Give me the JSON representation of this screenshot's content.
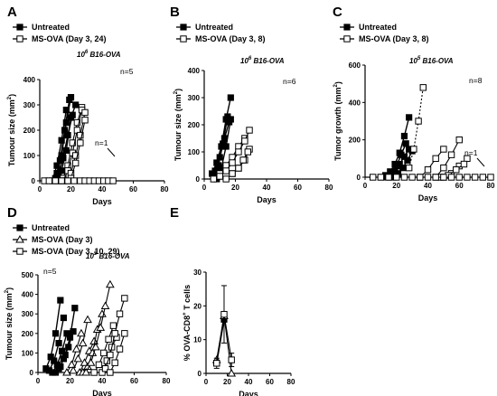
{
  "chart_data": [
    {
      "id": "A",
      "letter": "A",
      "type": "line",
      "legend": [
        {
          "label": "Untreated",
          "marker": "filled-square"
        },
        {
          "label": "MS-OVA (Day 3, 24)",
          "marker": "open-square"
        }
      ],
      "annotations": [
        "10",
        "6",
        " B16-OVA",
        "n=5",
        "n=1"
      ],
      "xlabel": "Days",
      "ylabel": "Tumour size (mm",
      "ylabel_sup": "2",
      "ylabel_end": ")",
      "xlim": [
        0,
        80
      ],
      "ylim": [
        0,
        400
      ],
      "xticks": [
        0,
        20,
        40,
        60,
        80
      ],
      "yticks": [
        0,
        100,
        200,
        300,
        400
      ],
      "series": [
        {
          "marker": "filled",
          "x": [
            8,
            11,
            14,
            17,
            20
          ],
          "y": [
            0,
            30,
            100,
            230,
            330
          ]
        },
        {
          "marker": "filled",
          "x": [
            8,
            11,
            14,
            17
          ],
          "y": [
            0,
            60,
            160,
            280
          ]
        },
        {
          "marker": "filled",
          "x": [
            10,
            13,
            16,
            19
          ],
          "y": [
            10,
            80,
            200,
            320
          ]
        },
        {
          "marker": "filled",
          "x": [
            11,
            14,
            17,
            20,
            23
          ],
          "y": [
            0,
            40,
            120,
            250,
            300
          ]
        },
        {
          "marker": "filled",
          "x": [
            12,
            15,
            18,
            21
          ],
          "y": [
            20,
            90,
            180,
            260
          ]
        },
        {
          "marker": "open",
          "x": [
            12,
            15,
            18,
            21,
            24,
            27
          ],
          "y": [
            0,
            10,
            60,
            150,
            230,
            290
          ]
        },
        {
          "marker": "open",
          "x": [
            15,
            18,
            21,
            24,
            27
          ],
          "y": [
            0,
            40,
            110,
            200,
            280
          ]
        },
        {
          "marker": "open",
          "x": [
            17,
            20,
            23,
            26,
            29
          ],
          "y": [
            0,
            30,
            100,
            180,
            270
          ]
        },
        {
          "marker": "open",
          "x": [
            20,
            23,
            26,
            29
          ],
          "y": [
            10,
            70,
            150,
            240
          ]
        },
        {
          "marker": "open",
          "x": [
            3,
            6,
            10,
            14,
            18,
            22,
            26,
            29,
            32,
            35,
            38,
            41,
            44,
            47
          ],
          "y": [
            0,
            0,
            0,
            0,
            0,
            0,
            0,
            0,
            0,
            0,
            0,
            0,
            0,
            0
          ]
        }
      ]
    },
    {
      "id": "B",
      "letter": "B",
      "type": "line",
      "legend": [
        {
          "label": "Untreated",
          "marker": "filled-square"
        },
        {
          "label": "MS-OVA (Day 3, 8)",
          "marker": "open-square"
        }
      ],
      "annotations": [
        "10",
        "6",
        " B16-OVA",
        "n=6"
      ],
      "xlabel": "Days",
      "ylabel": "Tumour size (mm",
      "ylabel_sup": "2",
      "ylabel_end": ")",
      "xlim": [
        0,
        80
      ],
      "ylim": [
        0,
        400
      ],
      "xticks": [
        0,
        20,
        40,
        60,
        80
      ],
      "yticks": [
        0,
        100,
        200,
        300,
        400
      ],
      "series": [
        {
          "marker": "filled",
          "x": [
            5,
            8,
            11,
            14,
            17
          ],
          "y": [
            20,
            60,
            120,
            220,
            300
          ]
        },
        {
          "marker": "filled",
          "x": [
            6,
            9,
            12,
            15
          ],
          "y": [
            10,
            50,
            130,
            230
          ]
        },
        {
          "marker": "filled",
          "x": [
            7,
            10,
            13,
            16
          ],
          "y": [
            30,
            80,
            150,
            210
          ]
        },
        {
          "marker": "filled",
          "x": [
            8,
            11,
            14,
            17
          ],
          "y": [
            0,
            40,
            120,
            220
          ]
        },
        {
          "marker": "open",
          "x": [
            6,
            10,
            14,
            18,
            22,
            26
          ],
          "y": [
            0,
            20,
            50,
            80,
            120,
            150
          ]
        },
        {
          "marker": "open",
          "x": [
            10,
            14,
            18,
            22,
            26,
            29
          ],
          "y": [
            10,
            30,
            60,
            100,
            140,
            180
          ]
        },
        {
          "marker": "open",
          "x": [
            14,
            18,
            22,
            26,
            29
          ],
          "y": [
            0,
            20,
            40,
            70,
            110
          ]
        },
        {
          "marker": "open",
          "x": [
            18,
            22,
            25,
            28
          ],
          "y": [
            20,
            40,
            70,
            100
          ]
        }
      ]
    },
    {
      "id": "C",
      "letter": "C",
      "type": "line",
      "legend": [
        {
          "label": "Untreated",
          "marker": "filled-square"
        },
        {
          "label": "MS-OVA (Day 3, 8)",
          "marker": "open-square"
        }
      ],
      "annotations": [
        "10",
        "5",
        " B16-OVA",
        "n=8",
        "n=1"
      ],
      "xlabel": "Days",
      "ylabel": "Tumor growth (mm",
      "ylabel_sup": "2",
      "ylabel_end": ")",
      "xlim": [
        0,
        80
      ],
      "ylim": [
        0,
        600
      ],
      "xticks": [
        0,
        20,
        40,
        60,
        80
      ],
      "yticks": [
        0,
        200,
        400,
        600
      ],
      "series": [
        {
          "marker": "filled",
          "x": [
            10,
            13,
            16,
            19,
            22,
            25,
            28
          ],
          "y": [
            0,
            10,
            30,
            70,
            130,
            220,
            320
          ]
        },
        {
          "marker": "filled",
          "x": [
            14,
            17,
            20,
            23,
            26
          ],
          "y": [
            0,
            20,
            60,
            120,
            180
          ]
        },
        {
          "marker": "filled",
          "x": [
            16,
            19,
            22,
            25,
            28
          ],
          "y": [
            0,
            30,
            70,
            110,
            150
          ]
        },
        {
          "marker": "filled",
          "x": [
            18,
            21,
            24,
            27,
            30
          ],
          "y": [
            0,
            20,
            50,
            90,
            140
          ]
        },
        {
          "marker": "open",
          "x": [
            28,
            31,
            34,
            37
          ],
          "y": [
            50,
            150,
            300,
            480
          ],
          "dashed": true
        },
        {
          "marker": "open",
          "x": [
            35,
            40,
            45,
            50
          ],
          "y": [
            0,
            40,
            100,
            150
          ]
        },
        {
          "marker": "open",
          "x": [
            45,
            50,
            55,
            60
          ],
          "y": [
            0,
            50,
            120,
            200
          ]
        },
        {
          "marker": "open",
          "x": [
            50,
            55,
            60,
            65
          ],
          "y": [
            0,
            20,
            60,
            100
          ]
        },
        {
          "marker": "open",
          "x": [
            48,
            53,
            58,
            63
          ],
          "y": [
            0,
            10,
            40,
            70
          ]
        },
        {
          "marker": "open",
          "x": [
            5,
            10,
            15,
            20,
            25,
            30,
            35,
            40,
            45,
            50,
            55,
            60,
            65,
            70,
            75,
            80
          ],
          "y": [
            0,
            0,
            0,
            0,
            0,
            0,
            0,
            0,
            0,
            0,
            0,
            0,
            0,
            0,
            0,
            0
          ]
        }
      ]
    },
    {
      "id": "D",
      "letter": "D",
      "type": "line",
      "legend": [
        {
          "label": "Untreated",
          "marker": "filled-square"
        },
        {
          "label": "MS-OVA (Day 3)",
          "marker": "open-triangle"
        },
        {
          "label": "MS-OVA (Day 3, 10, 29)",
          "marker": "open-square"
        }
      ],
      "annotations": [
        "10",
        "5",
        " B16-OVA",
        "n=5"
      ],
      "xlabel": "Days",
      "ylabel": "Tumour size (mm",
      "ylabel_sup": "2",
      "ylabel_end": ")",
      "xlim": [
        0,
        80
      ],
      "ylim": [
        0,
        500
      ],
      "xticks": [
        0,
        20,
        40,
        60,
        80
      ],
      "yticks": [
        0,
        100,
        200,
        300,
        400,
        500
      ],
      "series": [
        {
          "marker": "filled",
          "x": [
            5,
            8,
            11,
            14
          ],
          "y": [
            20,
            80,
            200,
            370
          ]
        },
        {
          "marker": "filled",
          "x": [
            7,
            10,
            13,
            16
          ],
          "y": [
            10,
            60,
            150,
            280
          ]
        },
        {
          "marker": "filled",
          "x": [
            9,
            12,
            15,
            18
          ],
          "y": [
            0,
            40,
            110,
            200
          ]
        },
        {
          "marker": "filled",
          "x": [
            11,
            14,
            17,
            20,
            23
          ],
          "y": [
            0,
            30,
            90,
            180,
            330
          ]
        },
        {
          "marker": "filled",
          "x": [
            13,
            16,
            19,
            22
          ],
          "y": [
            20,
            70,
            130,
            210
          ]
        },
        {
          "marker": "triangle",
          "x": [
            18,
            21,
            24,
            27
          ],
          "y": [
            0,
            40,
            120,
            200
          ]
        },
        {
          "marker": "triangle",
          "x": [
            22,
            25,
            28,
            31
          ],
          "y": [
            10,
            70,
            150,
            270
          ]
        },
        {
          "marker": "triangle",
          "x": [
            26,
            29,
            32,
            35
          ],
          "y": [
            0,
            50,
            110,
            160
          ]
        },
        {
          "marker": "triangle",
          "x": [
            28,
            31,
            34,
            37,
            40
          ],
          "y": [
            0,
            30,
            100,
            220,
            300
          ]
        },
        {
          "marker": "triangle",
          "x": [
            30,
            33,
            36,
            39,
            42,
            45
          ],
          "y": [
            0,
            50,
            130,
            230,
            340,
            450
          ]
        },
        {
          "marker": "open",
          "x": [
            35,
            38,
            41,
            44,
            47
          ],
          "y": [
            0,
            40,
            100,
            170,
            240
          ]
        },
        {
          "marker": "open",
          "x": [
            40,
            43,
            46,
            49
          ],
          "y": [
            0,
            60,
            130,
            180
          ]
        },
        {
          "marker": "open",
          "x": [
            42,
            45,
            48,
            51,
            54
          ],
          "y": [
            20,
            90,
            200,
            300,
            380
          ]
        },
        {
          "marker": "open",
          "x": [
            45,
            48,
            51,
            54
          ],
          "y": [
            0,
            50,
            120,
            200
          ]
        }
      ]
    },
    {
      "id": "E",
      "letter": "E",
      "type": "line",
      "legend": [],
      "annotations": [],
      "xlabel": "Days",
      "ylabel": "% OVA-CD8",
      "ylabel_sup": "+",
      "ylabel_end": " T cells",
      "xlim": [
        0,
        80
      ],
      "ylim": [
        0,
        30
      ],
      "xticks": [
        0,
        20,
        40,
        60,
        80
      ],
      "yticks": [
        0,
        10,
        20,
        30
      ],
      "series": [
        {
          "marker": "filled",
          "x": [
            10,
            17
          ],
          "y": [
            3,
            16
          ]
        },
        {
          "marker": "triangle",
          "x": [
            10,
            17,
            24
          ],
          "y": [
            4,
            17,
            0
          ]
        },
        {
          "marker": "open",
          "x": [
            10,
            17,
            24
          ],
          "y": [
            3,
            17.5,
            4
          ],
          "yerr": [
            1.5,
            8.5,
            2
          ]
        }
      ]
    }
  ]
}
